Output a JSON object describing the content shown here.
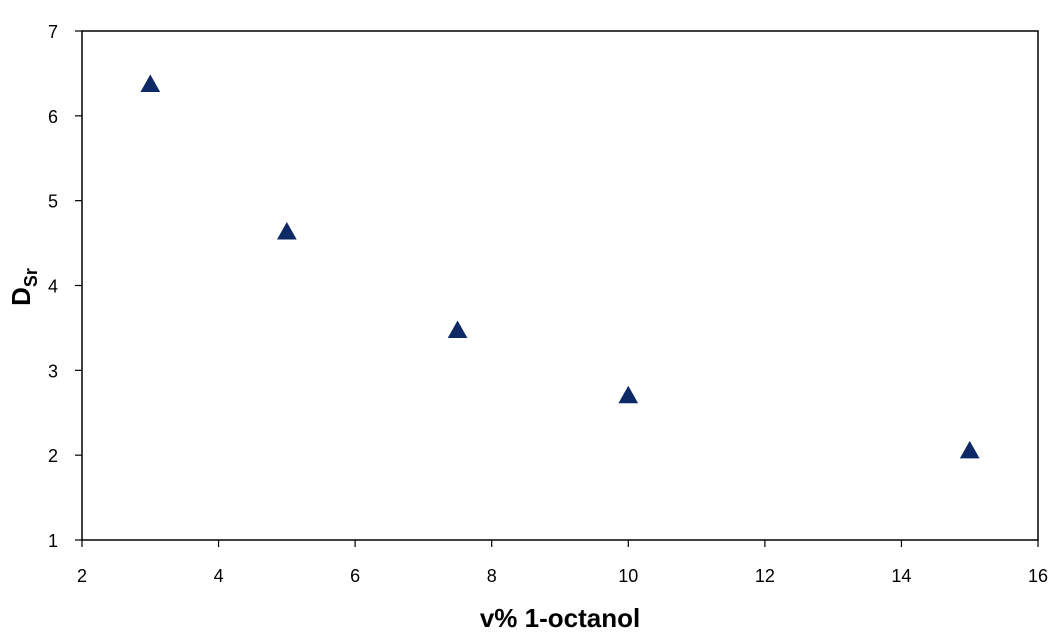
{
  "chart_data": {
    "type": "scatter",
    "title": "",
    "xlabel": "v% 1-octanol",
    "ylabel_main": "D",
    "ylabel_sub": "Sr",
    "xlim": [
      2,
      16
    ],
    "ylim": [
      1,
      7
    ],
    "xticks": [
      2,
      4,
      6,
      8,
      10,
      12,
      14,
      16
    ],
    "yticks": [
      1,
      2,
      3,
      4,
      5,
      6,
      7
    ],
    "grid": false,
    "legend": "none",
    "marker": "triangle",
    "marker_color": "#0d2a66",
    "series": [
      {
        "points": [
          {
            "x": 3,
            "y": 6.37
          },
          {
            "x": 5,
            "y": 4.63
          },
          {
            "x": 7.5,
            "y": 3.47
          },
          {
            "x": 10,
            "y": 2.7
          },
          {
            "x": 15,
            "y": 2.05
          }
        ]
      }
    ]
  }
}
